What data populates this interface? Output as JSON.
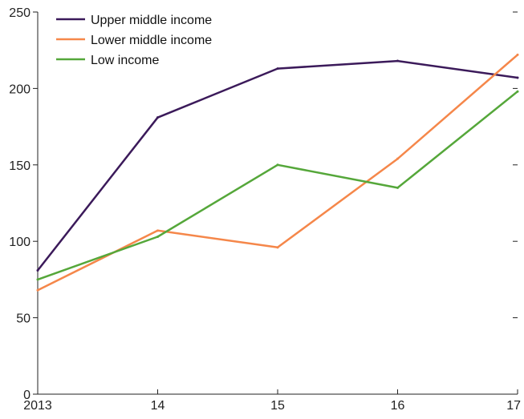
{
  "chart_data": {
    "type": "line",
    "title": "",
    "xlabel": "",
    "ylabel": "",
    "categories": [
      "2013",
      "14",
      "15",
      "16",
      "17"
    ],
    "ylim": [
      0,
      250
    ],
    "yticks": [
      0,
      50,
      100,
      150,
      200,
      250
    ],
    "grid": false,
    "legend_position": "top-left",
    "series": [
      {
        "name": "Upper middle income",
        "color": "#3b1a5a",
        "values": [
          81,
          181,
          213,
          218,
          207
        ]
      },
      {
        "name": "Lower middle income",
        "color": "#f5874a",
        "values": [
          68,
          107,
          96,
          154,
          222
        ]
      },
      {
        "name": "Low income",
        "color": "#55a73a",
        "values": [
          75,
          103,
          150,
          135,
          198
        ]
      }
    ]
  }
}
